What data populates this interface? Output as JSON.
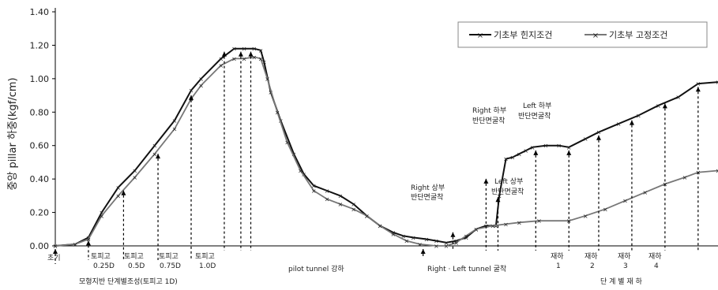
{
  "chart_data": {
    "type": "line",
    "title": "",
    "xlabel": "",
    "ylabel": "중앙 pillar 하중(kgf/cm)",
    "ylim": [
      0,
      1.4
    ],
    "yticks": [
      "0.00",
      "0.20",
      "0.40",
      "0.60",
      "0.80",
      "1.00",
      "1.20",
      "1.40"
    ],
    "grid": false,
    "legend_position": "top-right",
    "xlim": [
      0,
      100
    ],
    "series": [
      {
        "name": "기초부 힌지조건",
        "color": "#111111",
        "points": [
          [
            0,
            0
          ],
          [
            3,
            0.01
          ],
          [
            5,
            0.05
          ],
          [
            7,
            0.2
          ],
          [
            9.5,
            0.35
          ],
          [
            12,
            0.45
          ],
          [
            15,
            0.6
          ],
          [
            18,
            0.75
          ],
          [
            20.5,
            0.93
          ],
          [
            22,
            1.0
          ],
          [
            25,
            1.12
          ],
          [
            27,
            1.18
          ],
          [
            28.5,
            1.18
          ],
          [
            30,
            1.18
          ],
          [
            31,
            1.17
          ],
          [
            31.5,
            1.1
          ],
          [
            32.5,
            0.92
          ],
          [
            34,
            0.75
          ],
          [
            36,
            0.55
          ],
          [
            37.5,
            0.43
          ],
          [
            39,
            0.36
          ],
          [
            41,
            0.33
          ],
          [
            43,
            0.3
          ],
          [
            45,
            0.25
          ],
          [
            47,
            0.18
          ],
          [
            49,
            0.12
          ],
          [
            51,
            0.08
          ],
          [
            52.5,
            0.06
          ],
          [
            54,
            0.05
          ],
          [
            56,
            0.04
          ],
          [
            57.5,
            0.03
          ],
          [
            59,
            0.02
          ],
          [
            60.5,
            0.03
          ],
          [
            62,
            0.05
          ],
          [
            63.5,
            0.1
          ],
          [
            65,
            0.12
          ],
          [
            66.5,
            0.12
          ],
          [
            67,
            0.3
          ],
          [
            68,
            0.52
          ],
          [
            69,
            0.53
          ],
          [
            70,
            0.55
          ],
          [
            71,
            0.57
          ],
          [
            72,
            0.59
          ],
          [
            74,
            0.6
          ],
          [
            76,
            0.6
          ],
          [
            77.5,
            0.59
          ],
          [
            80,
            0.64
          ],
          [
            82,
            0.68
          ],
          [
            85,
            0.73
          ],
          [
            88,
            0.78
          ],
          [
            91,
            0.84
          ],
          [
            94,
            0.89
          ],
          [
            97,
            0.97
          ],
          [
            100,
            0.98
          ]
        ]
      },
      {
        "name": "기초부 고정조건",
        "color": "#777777",
        "points": [
          [
            0,
            0
          ],
          [
            3,
            0.01
          ],
          [
            5,
            0.04
          ],
          [
            7,
            0.18
          ],
          [
            9.5,
            0.3
          ],
          [
            12,
            0.41
          ],
          [
            15,
            0.55
          ],
          [
            18,
            0.7
          ],
          [
            20.5,
            0.88
          ],
          [
            22,
            0.96
          ],
          [
            25,
            1.08
          ],
          [
            27,
            1.12
          ],
          [
            28.5,
            1.12
          ],
          [
            30,
            1.13
          ],
          [
            31,
            1.12
          ],
          [
            32,
            1.0
          ],
          [
            33.5,
            0.8
          ],
          [
            35,
            0.62
          ],
          [
            37,
            0.45
          ],
          [
            39,
            0.33
          ],
          [
            41,
            0.28
          ],
          [
            43,
            0.25
          ],
          [
            45,
            0.22
          ],
          [
            47,
            0.18
          ],
          [
            49,
            0.12
          ],
          [
            51,
            0.07
          ],
          [
            53,
            0.03
          ],
          [
            55,
            0.01
          ],
          [
            57.5,
            0.0
          ],
          [
            59,
            0.0
          ],
          [
            60.5,
            0.02
          ],
          [
            62,
            0.06
          ],
          [
            63.5,
            0.1
          ],
          [
            66,
            0.12
          ],
          [
            68,
            0.13
          ],
          [
            70,
            0.14
          ],
          [
            73,
            0.15
          ],
          [
            77.5,
            0.15
          ],
          [
            80,
            0.18
          ],
          [
            83,
            0.22
          ],
          [
            86,
            0.27
          ],
          [
            89,
            0.32
          ],
          [
            92,
            0.37
          ],
          [
            95,
            0.41
          ],
          [
            97,
            0.44
          ],
          [
            100,
            0.45
          ]
        ]
      }
    ],
    "annotations": {
      "initial": "초기",
      "stage_labels": [
        {
          "line1": "토피고",
          "line2": "0.25D",
          "x": 6.5
        },
        {
          "line1": "토피고",
          "line2": "0.5D",
          "x": 11.5
        },
        {
          "line1": "토피고",
          "line2": "0.75D",
          "x": 16.5
        },
        {
          "line1": "토피고",
          "line2": "1.0D",
          "x": 21.5
        }
      ],
      "ground_stage": "모형지반 단계별조성(토피고 1D)",
      "pilot_tunnel": "pilot tunnel 강하",
      "rl_tunnel": "Right · Left tunnel 굴착",
      "unload_labels": [
        {
          "line1": "재하",
          "line2": "1",
          "x": 79.5
        },
        {
          "line1": "재하",
          "line2": "2",
          "x": 84.5
        },
        {
          "line1": "재하",
          "line2": "3",
          "x": 89.5
        },
        {
          "line1": "재하",
          "line2": "4",
          "x": 94.5
        }
      ],
      "unload_stage": "단 계 별 재 하",
      "right_upper": [
        "Right 상부",
        "반단면굴착"
      ],
      "left_upper": [
        "Left 상부",
        "반단면굴착"
      ],
      "right_lower": [
        "Right 하부",
        "반단면굴착"
      ],
      "left_lower": [
        "Left 하부",
        "반단면굴착"
      ]
    }
  }
}
